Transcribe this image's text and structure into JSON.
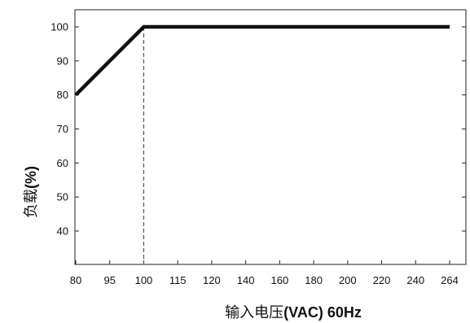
{
  "chart_data": {
    "type": "line",
    "xlabel_cn": "输入电压",
    "xlabel_unit": "(VAC) 60Hz",
    "ylabel_cn": "负载",
    "ylabel_unit": "(%)",
    "x_ticks": [
      80,
      95,
      100,
      115,
      120,
      140,
      160,
      180,
      200,
      220,
      240,
      264
    ],
    "y_ticks": [
      40,
      50,
      60,
      70,
      80,
      90,
      100
    ],
    "ylim": [
      30,
      105
    ],
    "series": [
      {
        "points": [
          {
            "x": 80,
            "y": 80
          },
          {
            "x": 100,
            "y": 100
          },
          {
            "x": 264,
            "y": 100
          }
        ]
      }
    ],
    "reference_lines": [
      {
        "orientation": "vertical",
        "x": 100,
        "style": "dashed"
      }
    ],
    "grid": false
  }
}
